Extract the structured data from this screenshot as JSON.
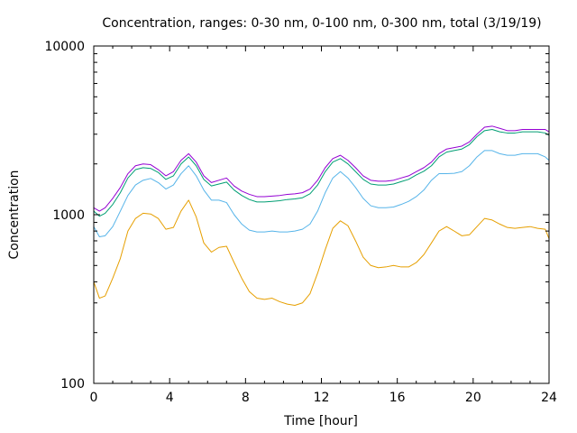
{
  "chart_data": {
    "type": "line",
    "title": "Concentration, ranges: 0-30 nm, 0-100 nm, 0-300 nm, total (3/19/19)",
    "xlabel": "Time [hour]",
    "ylabel": "Concentration",
    "xlim": [
      0,
      24
    ],
    "ylim": [
      100,
      10000
    ],
    "yscale": "log",
    "grid": false,
    "legend": "none",
    "x_ticks": [
      "0",
      "4",
      "8",
      "12",
      "16",
      "20",
      "24"
    ],
    "y_ticks": [
      "100",
      "1000",
      "10000"
    ],
    "x": [
      0,
      0.3,
      0.6,
      1,
      1.4,
      1.8,
      2.2,
      2.6,
      3,
      3.4,
      3.8,
      4.2,
      4.6,
      5,
      5.4,
      5.8,
      6.2,
      6.6,
      7,
      7.4,
      7.8,
      8.2,
      8.6,
      9,
      9.4,
      9.8,
      10.2,
      10.6,
      11,
      11.4,
      11.8,
      12.2,
      12.6,
      13,
      13.4,
      13.8,
      14.2,
      14.6,
      15,
      15.4,
      15.8,
      16.2,
      16.6,
      17,
      17.4,
      17.8,
      18.2,
      18.6,
      19,
      19.4,
      19.8,
      20.2,
      20.6,
      21,
      21.4,
      21.8,
      22.2,
      22.6,
      23,
      23.4,
      23.8,
      24
    ],
    "series": [
      {
        "color": "#9400d3",
        "values": [
          1100,
          1050,
          1100,
          1250,
          1450,
          1750,
          1950,
          2000,
          1980,
          1850,
          1700,
          1800,
          2100,
          2300,
          2050,
          1700,
          1550,
          1600,
          1650,
          1480,
          1380,
          1320,
          1280,
          1280,
          1290,
          1300,
          1320,
          1330,
          1350,
          1420,
          1600,
          1900,
          2150,
          2250,
          2100,
          1900,
          1700,
          1600,
          1580,
          1580,
          1600,
          1650,
          1700,
          1800,
          1900,
          2050,
          2300,
          2450,
          2500,
          2550,
          2700,
          3000,
          3300,
          3350,
          3250,
          3150,
          3150,
          3200,
          3200,
          3200,
          3200,
          3100
        ]
      },
      {
        "color": "#009e73",
        "values": [
          1050,
          980,
          1020,
          1150,
          1350,
          1650,
          1850,
          1900,
          1880,
          1780,
          1620,
          1700,
          2000,
          2200,
          1950,
          1620,
          1480,
          1520,
          1560,
          1400,
          1300,
          1230,
          1190,
          1190,
          1200,
          1210,
          1230,
          1240,
          1260,
          1330,
          1500,
          1800,
          2050,
          2150,
          2000,
          1800,
          1620,
          1520,
          1500,
          1500,
          1520,
          1570,
          1620,
          1720,
          1810,
          1950,
          2200,
          2350,
          2400,
          2450,
          2600,
          2900,
          3150,
          3200,
          3100,
          3050,
          3050,
          3100,
          3100,
          3100,
          3050,
          2950
        ]
      },
      {
        "color": "#56b4e9",
        "values": [
          850,
          740,
          750,
          850,
          1050,
          1300,
          1500,
          1600,
          1640,
          1550,
          1420,
          1500,
          1750,
          1950,
          1700,
          1400,
          1220,
          1220,
          1180,
          1000,
          880,
          810,
          790,
          790,
          800,
          790,
          790,
          800,
          820,
          880,
          1050,
          1350,
          1650,
          1800,
          1650,
          1450,
          1250,
          1130,
          1100,
          1100,
          1110,
          1150,
          1200,
          1280,
          1400,
          1600,
          1750,
          1750,
          1760,
          1800,
          1950,
          2200,
          2400,
          2400,
          2300,
          2250,
          2250,
          2300,
          2300,
          2300,
          2200,
          2100
        ]
      },
      {
        "color": "#e69f00",
        "values": [
          400,
          320,
          330,
          420,
          550,
          800,
          950,
          1020,
          1010,
          950,
          820,
          840,
          1050,
          1220,
          970,
          680,
          600,
          640,
          650,
          520,
          420,
          350,
          320,
          315,
          320,
          305,
          295,
          290,
          300,
          340,
          450,
          620,
          830,
          920,
          860,
          700,
          560,
          500,
          485,
          490,
          500,
          490,
          490,
          520,
          580,
          680,
          800,
          850,
          800,
          750,
          760,
          850,
          950,
          930,
          880,
          840,
          830,
          840,
          850,
          830,
          820,
          720
        ]
      }
    ]
  }
}
